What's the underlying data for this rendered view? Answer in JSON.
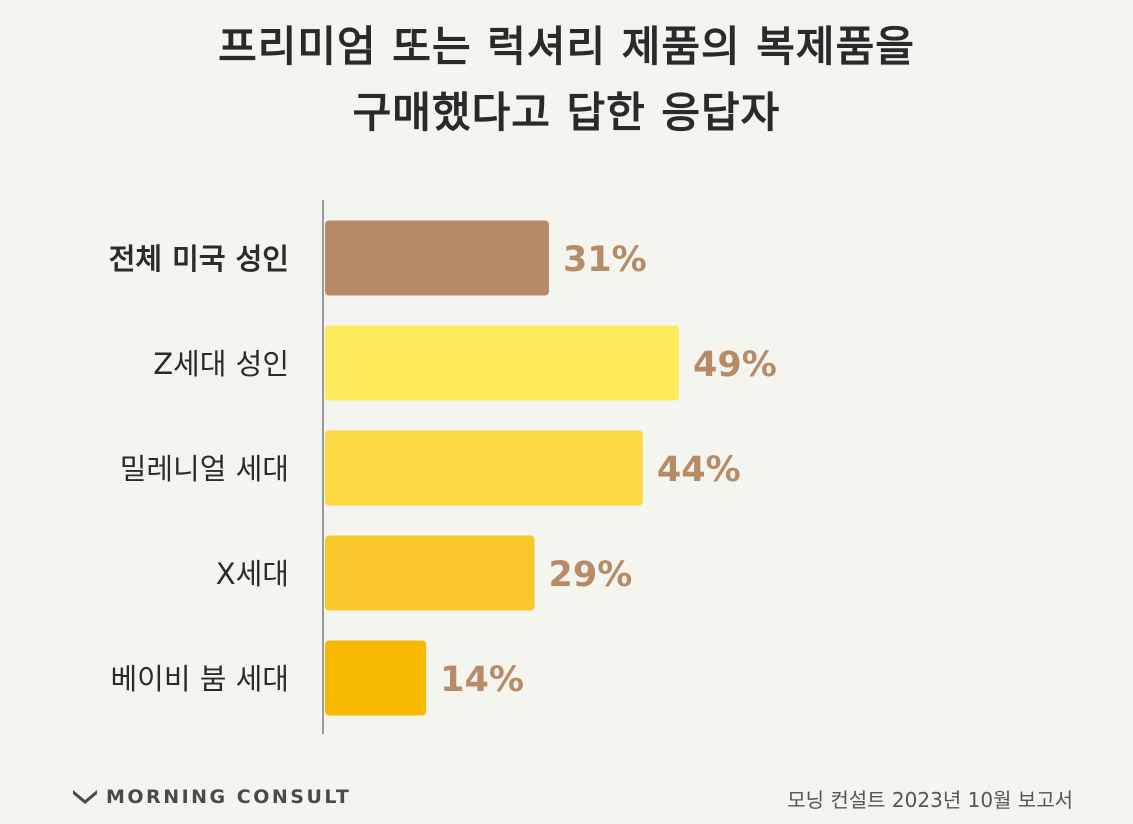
{
  "title_lines": [
    "프리미엄 또는 럭셔리 제품의 복제품을",
    "구매했다고 답한 응답자"
  ],
  "footer": {
    "brand": "MORNING CONSULT",
    "brand_icon": "morning-consult-logo-icon",
    "source": "모닝 컨설트 2023년 10월 보고서"
  },
  "chart_data": {
    "type": "bar",
    "orientation": "horizontal",
    "categories": [
      "전체 미국 성인",
      "Z세대 성인",
      "밀레니얼 세대",
      "X세대",
      "베이비 붐 세대"
    ],
    "values": [
      31,
      49,
      44,
      29,
      14
    ],
    "value_labels": [
      "31%",
      "49%",
      "44%",
      "29%",
      "14%"
    ],
    "bar_colors": [
      "#b88b68",
      "#ffe95c",
      "#fdd943",
      "#f9c72b",
      "#f6b900"
    ],
    "label_color": "#b88b68",
    "category_bold": [
      true,
      false,
      false,
      false,
      false
    ],
    "xlim": [
      0,
      100
    ],
    "grid": false,
    "legend": "none"
  }
}
